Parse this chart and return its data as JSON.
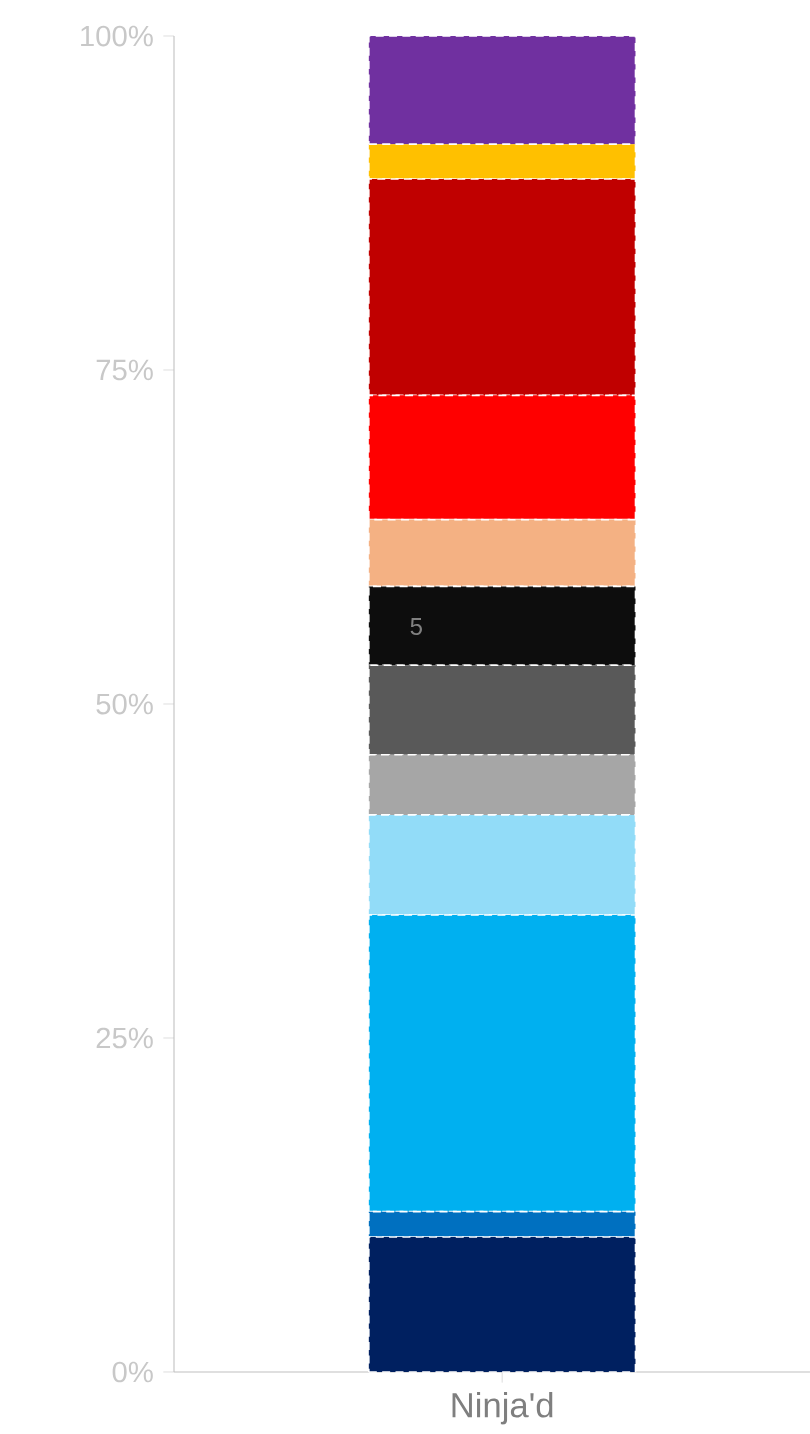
{
  "chart_data": {
    "type": "bar",
    "stacked": true,
    "categories": [
      "Ninja'd"
    ],
    "series": [
      {
        "color": "#002060",
        "values": [
          10.1
        ]
      },
      {
        "color": "#0070c0",
        "values": [
          1.9
        ]
      },
      {
        "color": "#00b0f0",
        "values": [
          22.2
        ]
      },
      {
        "color": "#92dcf8",
        "values": [
          7.5
        ]
      },
      {
        "color": "#a6a6a6",
        "values": [
          4.5
        ]
      },
      {
        "color": "#595959",
        "values": [
          6.7
        ]
      },
      {
        "color": "#0d0d0d",
        "values": [
          5.9
        ]
      },
      {
        "color": "#f4b183",
        "values": [
          5.0
        ]
      },
      {
        "color": "#ff0000",
        "values": [
          9.3
        ]
      },
      {
        "color": "#c00000",
        "values": [
          16.2
        ]
      },
      {
        "color": "#ffc000",
        "values": [
          2.6
        ]
      },
      {
        "color": "#7030a0",
        "values": [
          8.1
        ]
      }
    ],
    "ylim": [
      0,
      100
    ],
    "yticks": [
      {
        "value": 0,
        "label": "0%"
      },
      {
        "value": 25,
        "label": "25%"
      },
      {
        "value": 50,
        "label": "50%"
      },
      {
        "value": 75,
        "label": "75%"
      },
      {
        "value": 100,
        "label": "100%"
      }
    ],
    "annotations": [
      "5"
    ],
    "grid": false
  }
}
